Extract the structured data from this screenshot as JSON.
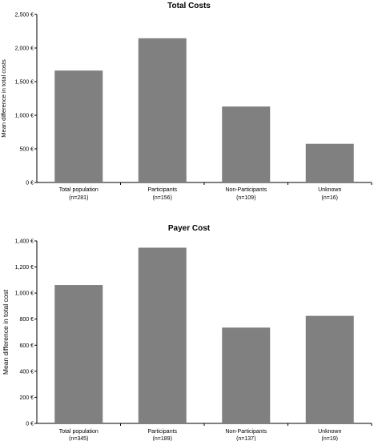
{
  "chart_data": [
    {
      "type": "bar",
      "title": "Total Costs",
      "ylabel": "Mean difference in total costs",
      "xlabel": "",
      "categories": [
        "Total population",
        "Participants",
        "Non-Participants",
        "Unknown"
      ],
      "category_sublabels": [
        "(n=281)",
        "(n=156)",
        "(n=109)",
        "(n=16)"
      ],
      "values": [
        1665,
        2145,
        1130,
        575
      ],
      "ylim": [
        0,
        2500
      ],
      "yticks": [
        0,
        500,
        1000,
        1500,
        2000,
        2500
      ],
      "ytick_labels": [
        "0 €",
        "500 €",
        "1,000 €",
        "1,500 €",
        "2,000 €",
        "2,500 €"
      ],
      "bar_color": "#808080",
      "grid": false
    },
    {
      "type": "bar",
      "title": "Payer Cost",
      "ylabel": "Mean difference in total cost",
      "xlabel": "",
      "categories": [
        "Total population",
        "Participants",
        "Non-Participants",
        "Unknown"
      ],
      "category_sublabels": [
        "(n=345)",
        "(n=189)",
        "(n=137)",
        "(n=19)"
      ],
      "values": [
        1062,
        1348,
        735,
        825
      ],
      "ylim": [
        0,
        1400
      ],
      "yticks": [
        0,
        200,
        400,
        600,
        800,
        1000,
        1200,
        1400
      ],
      "ytick_labels": [
        "0 €",
        "200 €",
        "400 €",
        "600 €",
        "800 €",
        "1,000 €",
        "1,200 €",
        "1,400 €"
      ],
      "bar_color": "#808080",
      "grid": false
    }
  ]
}
